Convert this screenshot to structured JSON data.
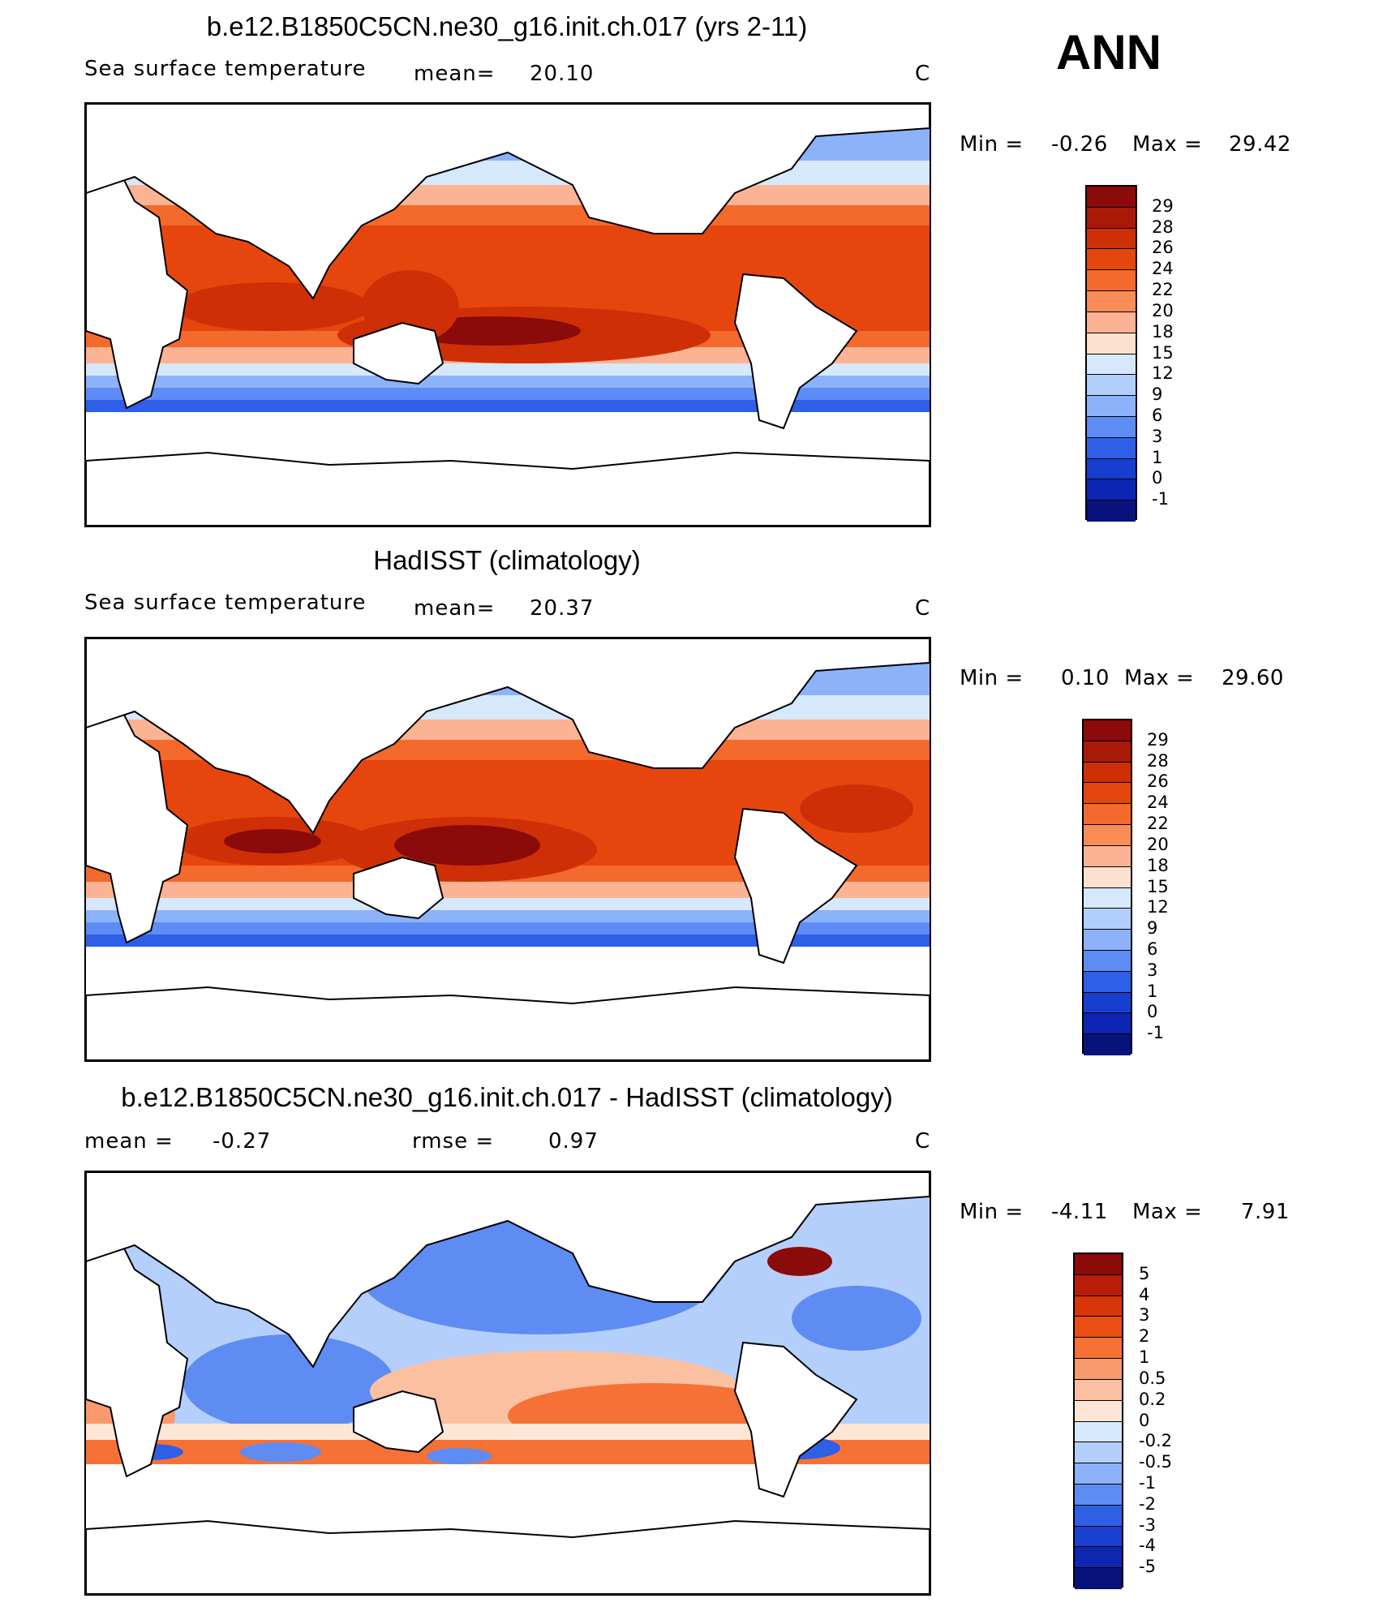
{
  "season": "ANN",
  "chart_data": [
    {
      "type": "heatmap",
      "title": "b.e12.B1850C5CN.ne30_g16.init.ch.017 (yrs 2-11)",
      "variable": "Sea surface temperature",
      "stat_label": "mean=",
      "stat_value": "20.10",
      "units": "C",
      "min_label": "Min =",
      "min": "-0.26",
      "max_label": "Max =",
      "max": "29.42",
      "levels": [
        "29",
        "28",
        "26",
        "24",
        "22",
        "20",
        "18",
        "15",
        "12",
        "9",
        "6",
        "3",
        "1",
        "0",
        "-1"
      ],
      "colors": [
        "#8b0a0a",
        "#a81a08",
        "#cf2f06",
        "#e6460d",
        "#f4692c",
        "#fa8c57",
        "#fcb394",
        "#fde1cf",
        "#d6e8fb",
        "#b2cefc",
        "#8cb2fa",
        "#5c8cf4",
        "#2e5fe6",
        "#163fd2",
        "#0c26b3",
        "#07127c"
      ]
    },
    {
      "type": "heatmap",
      "title": "HadISST (climatology)",
      "variable": "Sea surface temperature",
      "stat_label": "mean=",
      "stat_value": "20.37",
      "units": "C",
      "min_label": "Min =",
      "min": "0.10",
      "max_label": "Max =",
      "max": "29.60",
      "levels": [
        "29",
        "28",
        "26",
        "24",
        "22",
        "20",
        "18",
        "15",
        "12",
        "9",
        "6",
        "3",
        "1",
        "0",
        "-1"
      ],
      "colors": [
        "#8b0a0a",
        "#a81a08",
        "#cf2f06",
        "#e6460d",
        "#f4692c",
        "#fa8c57",
        "#fcb394",
        "#fde1cf",
        "#d6e8fb",
        "#b2cefc",
        "#8cb2fa",
        "#5c8cf4",
        "#2e5fe6",
        "#163fd2",
        "#0c26b3",
        "#07127c"
      ]
    },
    {
      "type": "heatmap",
      "title": "b.e12.B1850C5CN.ne30_g16.init.ch.017 - HadISST (climatology)",
      "mean_label": "mean =",
      "mean_value": "-0.27",
      "rmse_label": "rmse =",
      "rmse_value": "0.97",
      "units": "C",
      "min_label": "Min =",
      "min": "-4.11",
      "max_label": "Max =",
      "max": "7.91",
      "levels": [
        "5",
        "4",
        "3",
        "2",
        "1",
        "0.5",
        "0.2",
        "0",
        "-0.2",
        "-0.5",
        "-1",
        "-2",
        "-3",
        "-4",
        "-5"
      ],
      "colors": [
        "#8b0a0a",
        "#b81d08",
        "#d83508",
        "#ec4f12",
        "#f67136",
        "#f99a6c",
        "#fbc0a0",
        "#fde6d6",
        "#d7e9fc",
        "#b4cffc",
        "#8db2f9",
        "#5e8cf2",
        "#2f5fe4",
        "#1a40cf",
        "#0d27b0",
        "#07127c"
      ]
    }
  ]
}
